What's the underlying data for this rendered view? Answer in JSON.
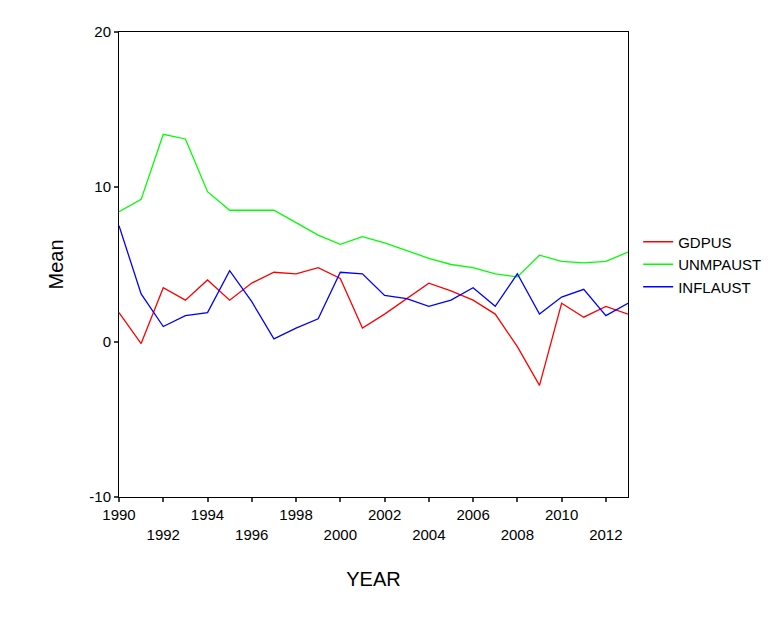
{
  "chart_data": {
    "type": "line",
    "x_label": "YEAR",
    "y_label": "Mean",
    "x": [
      1990,
      1991,
      1992,
      1993,
      1994,
      1995,
      1996,
      1997,
      1998,
      1999,
      2000,
      2001,
      2002,
      2003,
      2004,
      2005,
      2006,
      2007,
      2008,
      2009,
      2010,
      2011,
      2012,
      2013
    ],
    "series": [
      {
        "name": "GDPUS",
        "color": "#ff0000",
        "values": [
          1.9,
          -0.1,
          3.5,
          2.7,
          4.0,
          2.7,
          3.8,
          4.5,
          4.4,
          4.8,
          4.1,
          0.9,
          1.8,
          2.8,
          3.8,
          3.3,
          2.7,
          1.8,
          -0.3,
          -2.8,
          2.5,
          1.6,
          2.3,
          1.8
        ]
      },
      {
        "name": "UNMPAUST",
        "color": "#00ff00",
        "values": [
          8.4,
          9.2,
          13.4,
          13.1,
          9.7,
          8.5,
          8.5,
          8.5,
          7.7,
          6.9,
          6.3,
          6.8,
          6.4,
          5.9,
          5.4,
          5.0,
          4.8,
          4.4,
          4.2,
          5.6,
          5.2,
          5.1,
          5.2,
          5.8
        ]
      },
      {
        "name": "INFLAUST",
        "color": "#0000ff",
        "values": [
          7.5,
          3.1,
          1.0,
          1.7,
          1.9,
          4.6,
          2.6,
          0.2,
          0.9,
          1.5,
          4.5,
          4.4,
          3.0,
          2.8,
          2.3,
          2.7,
          3.5,
          2.3,
          4.4,
          1.8,
          2.9,
          3.4,
          1.7,
          2.5
        ]
      }
    ],
    "xlim": [
      1990,
      2013
    ],
    "xticks": [
      1990,
      1992,
      1994,
      1996,
      1998,
      2000,
      2002,
      2004,
      2006,
      2008,
      2010,
      2012
    ],
    "ylim": [
      -10,
      20
    ],
    "yticks": [
      -10,
      0,
      10,
      20
    ],
    "grid": false,
    "legend": "right"
  }
}
